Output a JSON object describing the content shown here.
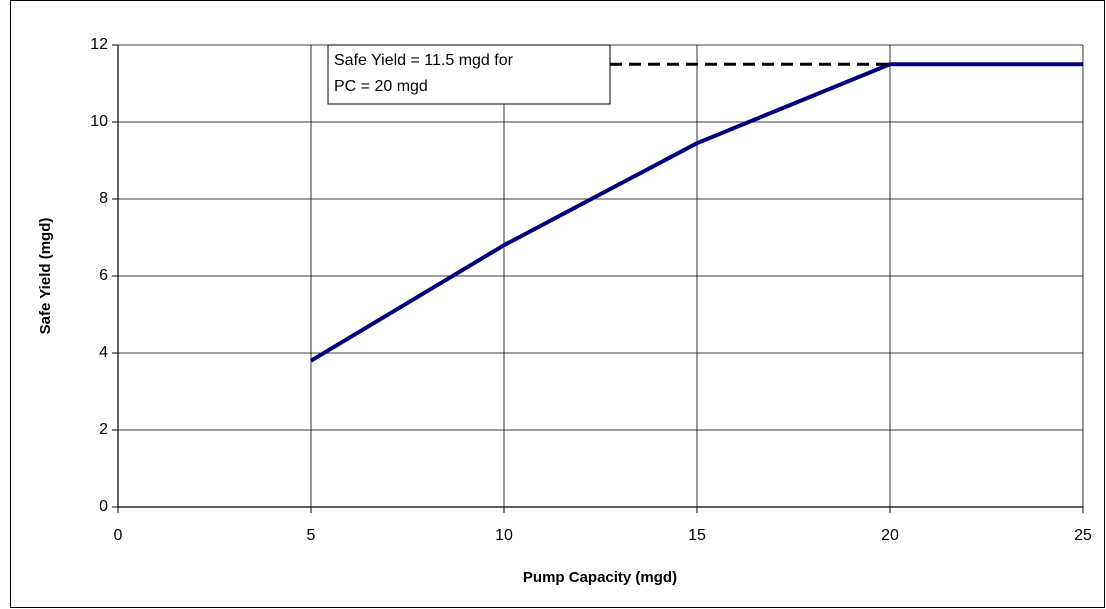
{
  "chart_data": {
    "type": "line",
    "xlabel": "Pump Capacity (mgd)",
    "ylabel": "Safe Yield (mgd)",
    "x": [
      5,
      10,
      15,
      20,
      25
    ],
    "series": [
      {
        "color": "#000080",
        "values": [
          3.8,
          6.8,
          9.45,
          11.5,
          11.5
        ]
      }
    ],
    "xlim": [
      0,
      25
    ],
    "xticks": [
      0,
      5,
      10,
      15,
      20,
      25
    ],
    "ylim": [
      0,
      12
    ],
    "yticks": [
      0,
      2,
      4,
      6,
      8,
      10,
      12
    ],
    "grid": true,
    "annotation": [
      "Safe Yield = 11.5 mgd for",
      "PC = 20 mgd"
    ]
  }
}
